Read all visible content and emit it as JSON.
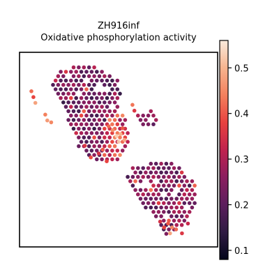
{
  "chart_data": {
    "type": "scatter",
    "title": "ZH916inf",
    "subtitle": "Oxidative phosphorylation activity",
    "xlabel": "",
    "ylabel": "",
    "grid": false,
    "legend": "none",
    "colormap": "rocket",
    "colorbar": {
      "range": [
        0.08,
        0.56
      ],
      "ticks": [
        0.1,
        0.2,
        0.3,
        0.4,
        0.5
      ],
      "tick_labels": [
        "0.1",
        "0.2",
        "0.3",
        "0.4",
        "0.5"
      ],
      "stops": [
        "#03051a",
        "#2f1b43",
        "#5c1e5d",
        "#8b1e5f",
        "#c0234f",
        "#e8423f",
        "#f3805d",
        "#f6b48f",
        "#faebdd"
      ]
    },
    "xlim": [
      0,
      100
    ],
    "ylim": [
      0,
      100
    ],
    "regions": [
      {
        "name": "",
        "polygon": [
          [
            17,
            88
          ],
          [
            22,
            91
          ],
          [
            28,
            93
          ],
          [
            38,
            93
          ],
          [
            45,
            89
          ],
          [
            50,
            86
          ],
          [
            51,
            78
          ],
          [
            50,
            70
          ],
          [
            47,
            62
          ],
          [
            48,
            55
          ],
          [
            50,
            50
          ],
          [
            46,
            45
          ],
          [
            40,
            44
          ],
          [
            34,
            47
          ],
          [
            30,
            51
          ],
          [
            28,
            57
          ],
          [
            25,
            64
          ],
          [
            22,
            72
          ],
          [
            18,
            80
          ],
          [
            16,
            85
          ]
        ],
        "base_value": 0.22,
        "spread": 0.07
      },
      {
        "name": "",
        "polygon": [
          [
            55,
            40
          ],
          [
            60,
            42
          ],
          [
            68,
            43
          ],
          [
            75,
            44
          ],
          [
            80,
            42
          ],
          [
            84,
            38
          ],
          [
            88,
            33
          ],
          [
            90,
            28
          ],
          [
            89,
            20
          ],
          [
            86,
            14
          ],
          [
            80,
            9
          ],
          [
            75,
            6
          ],
          [
            72,
            8
          ],
          [
            70,
            12
          ],
          [
            66,
            17
          ],
          [
            62,
            22
          ],
          [
            58,
            27
          ],
          [
            55,
            32
          ],
          [
            54,
            37
          ]
        ],
        "base_value": 0.24,
        "spread": 0.07
      },
      {
        "name": "",
        "polygon": [
          [
            60,
            69
          ],
          [
            66,
            70
          ],
          [
            70,
            67
          ],
          [
            68,
            62
          ],
          [
            62,
            61
          ],
          [
            59,
            64
          ]
        ],
        "base_value": 0.25,
        "spread": 0.06
      },
      {
        "name": "",
        "polygon": [
          [
            44,
            68
          ],
          [
            52,
            69
          ],
          [
            55,
            62
          ],
          [
            55,
            52
          ],
          [
            52,
            45
          ],
          [
            46,
            43
          ],
          [
            42,
            47
          ],
          [
            42,
            55
          ],
          [
            42,
            62
          ]
        ],
        "base_value": 0.36,
        "spread": 0.09
      }
    ],
    "highlights": [
      {
        "x": 6,
        "y": 80,
        "value": 0.42
      },
      {
        "x": 7,
        "y": 77,
        "value": 0.38
      },
      {
        "x": 8,
        "y": 74,
        "value": 0.48
      },
      {
        "x": 13,
        "y": 68,
        "value": 0.44
      },
      {
        "x": 14,
        "y": 65,
        "value": 0.47
      },
      {
        "x": 16,
        "y": 64,
        "value": 0.45
      },
      {
        "x": 57,
        "y": 73,
        "value": 0.43
      },
      {
        "x": 58,
        "y": 70,
        "value": 0.36
      },
      {
        "x": 49,
        "y": 57,
        "value": 0.53
      },
      {
        "x": 51,
        "y": 58,
        "value": 0.5
      },
      {
        "x": 53,
        "y": 55,
        "value": 0.49
      },
      {
        "x": 50,
        "y": 54,
        "value": 0.52
      },
      {
        "x": 47,
        "y": 60,
        "value": 0.46
      },
      {
        "x": 45,
        "y": 62,
        "value": 0.42
      },
      {
        "x": 52,
        "y": 61,
        "value": 0.4
      },
      {
        "x": 75,
        "y": 12,
        "value": 0.4
      },
      {
        "x": 77,
        "y": 10,
        "value": 0.45
      },
      {
        "x": 79,
        "y": 9,
        "value": 0.42
      },
      {
        "x": 76,
        "y": 7,
        "value": 0.48
      },
      {
        "x": 73,
        "y": 10,
        "value": 0.38
      },
      {
        "x": 82,
        "y": 7,
        "value": 0.36
      },
      {
        "x": 71,
        "y": 13,
        "value": 0.35
      },
      {
        "x": 85,
        "y": 12,
        "value": 0.33
      },
      {
        "x": 44,
        "y": 44,
        "value": 0.38
      },
      {
        "x": 42,
        "y": 50,
        "value": 0.41
      },
      {
        "x": 40,
        "y": 48,
        "value": 0.35
      },
      {
        "x": 36,
        "y": 46,
        "value": 0.39
      },
      {
        "x": 33,
        "y": 52,
        "value": 0.36
      }
    ],
    "holes": [
      [
        63,
        34
      ],
      [
        66,
        31
      ],
      [
        69,
        35
      ],
      [
        78,
        26
      ],
      [
        80,
        30
      ],
      [
        84,
        20
      ],
      [
        72,
        27
      ],
      [
        30,
        78
      ],
      [
        35,
        85
      ],
      [
        42,
        82
      ],
      [
        46,
        72
      ]
    ]
  }
}
